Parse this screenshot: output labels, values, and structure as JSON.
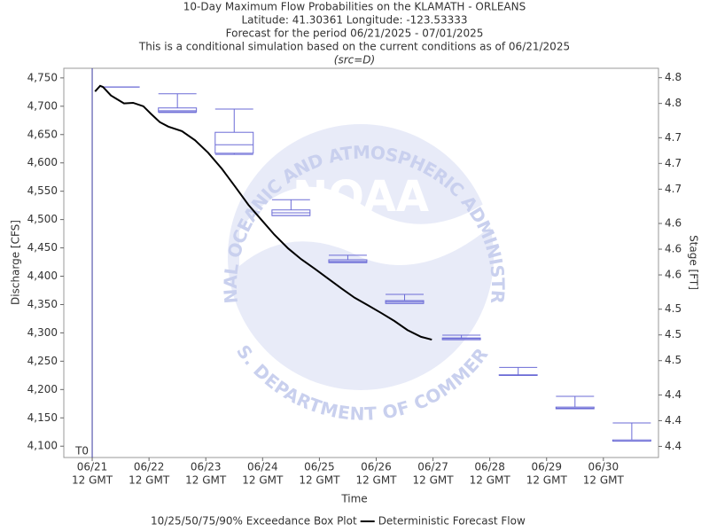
{
  "chart_data": {
    "type": "box_line",
    "title": [
      "10-Day Maximum Flow Probabilities on the KLAMATH - ORLEANS",
      "Latitude: 41.30361 Longitude: -123.53333",
      "Forecast for the period 06/21/2025 - 07/01/2025",
      "This is a conditional simulation based on the current conditions as of 06/21/2025",
      "(src=D)"
    ],
    "y_label": "Discharge [CFS]",
    "y2_label": "Stage [FT]",
    "x_label": "Time",
    "xlim": [
      -0.5,
      9.97
    ],
    "xticks": [
      {
        "value": 0,
        "label": "06/21"
      },
      {
        "value": 1,
        "label": "06/22"
      },
      {
        "value": 2,
        "label": "06/23"
      },
      {
        "value": 3,
        "label": "06/24"
      },
      {
        "value": 4,
        "label": "06/25"
      },
      {
        "value": 5,
        "label": "06/26"
      },
      {
        "value": 6,
        "label": "06/27"
      },
      {
        "value": 7,
        "label": "06/28"
      },
      {
        "value": 8,
        "label": "06/29"
      },
      {
        "value": 9,
        "label": "06/30"
      }
    ],
    "xtick_sublabel": "12 GMT",
    "ylim": [
      4080,
      4767
    ],
    "yticks": [
      {
        "value": 4100,
        "label": "4,100"
      },
      {
        "value": 4150,
        "label": "4,150"
      },
      {
        "value": 4200,
        "label": "4,200"
      },
      {
        "value": 4250,
        "label": "4,250"
      },
      {
        "value": 4300,
        "label": "4,300"
      },
      {
        "value": 4350,
        "label": "4,350"
      },
      {
        "value": 4400,
        "label": "4,400"
      },
      {
        "value": 4450,
        "label": "4,450"
      },
      {
        "value": 4500,
        "label": "4,500"
      },
      {
        "value": 4550,
        "label": "4,550"
      },
      {
        "value": 4600,
        "label": "4,600"
      },
      {
        "value": 4650,
        "label": "4,650"
      },
      {
        "value": 4700,
        "label": "4,700"
      },
      {
        "value": 4750,
        "label": "4,750"
      }
    ],
    "y2lim": [
      4.347,
      4.801
    ],
    "y2ticks": [
      {
        "value": 4.36,
        "label": "4.4"
      },
      {
        "value": 4.39,
        "label": "4.4"
      },
      {
        "value": 4.42,
        "label": "4.4"
      },
      {
        "value": 4.46,
        "label": "4.5"
      },
      {
        "value": 4.49,
        "label": "4.5"
      },
      {
        "value": 4.52,
        "label": "4.5"
      },
      {
        "value": 4.56,
        "label": "4.6"
      },
      {
        "value": 4.59,
        "label": "4.6"
      },
      {
        "value": 4.62,
        "label": "4.6"
      },
      {
        "value": 4.66,
        "label": "4.7"
      },
      {
        "value": 4.69,
        "label": "4.7"
      },
      {
        "value": 4.72,
        "label": "4.7"
      },
      {
        "value": 4.76,
        "label": "4.8"
      },
      {
        "value": 4.79,
        "label": "4.8"
      }
    ],
    "t0": {
      "label": "T0",
      "x": 0,
      "color": "#3a3aa0"
    },
    "boxes": {
      "name": "10/25/50/75/90% Exceedance Box Plot",
      "color": "#6b6bd6",
      "width": 0.67,
      "x": [
        0.5,
        1.5,
        2.5,
        3.5,
        4.5,
        5.5,
        6.5,
        7.5,
        8.5,
        9.5
      ],
      "p10": [
        4734,
        4689,
        4615,
        4507,
        4424,
        4352,
        4288,
        4225,
        4166,
        4109
      ],
      "p25": [
        4734,
        4690,
        4617,
        4507,
        4424,
        4352,
        4288,
        4225,
        4166,
        4109
      ],
      "p50": [
        4734,
        4692,
        4632,
        4512,
        4426,
        4355,
        4290,
        4225,
        4167,
        4109
      ],
      "p75": [
        4734,
        4697,
        4654,
        4517,
        4429,
        4357,
        4291,
        4226,
        4169,
        4111
      ],
      "p90": [
        4734,
        4722,
        4695,
        4535,
        4437,
        4368,
        4296,
        4239,
        4188,
        4141
      ]
    },
    "line": {
      "name": "Deterministic Forecast Flow",
      "color": "#000000",
      "x": [
        0.05,
        0.14,
        0.19,
        0.33,
        0.56,
        0.72,
        0.9,
        1.03,
        1.19,
        1.34,
        1.58,
        1.81,
        2.04,
        2.28,
        2.51,
        2.75,
        3.01,
        3.21,
        3.45,
        3.68,
        3.92,
        4.15,
        4.38,
        4.62,
        4.85,
        5.09,
        5.32,
        5.55,
        5.79,
        5.98
      ],
      "values": [
        4726,
        4736,
        4734,
        4719,
        4705,
        4706,
        4700,
        4687,
        4672,
        4664,
        4656,
        4640,
        4618,
        4590,
        4559,
        4526,
        4496,
        4473,
        4449,
        4430,
        4413,
        4396,
        4379,
        4362,
        4349,
        4335,
        4321,
        4305,
        4293,
        4288
      ]
    },
    "watermark": {
      "center": "NOAA",
      "top": "NATIONAL OCEANIC AND ATMOSPHERIC ADMINISTRATION",
      "bottom": "U.S. DEPARTMENT OF COMMERCE"
    }
  }
}
